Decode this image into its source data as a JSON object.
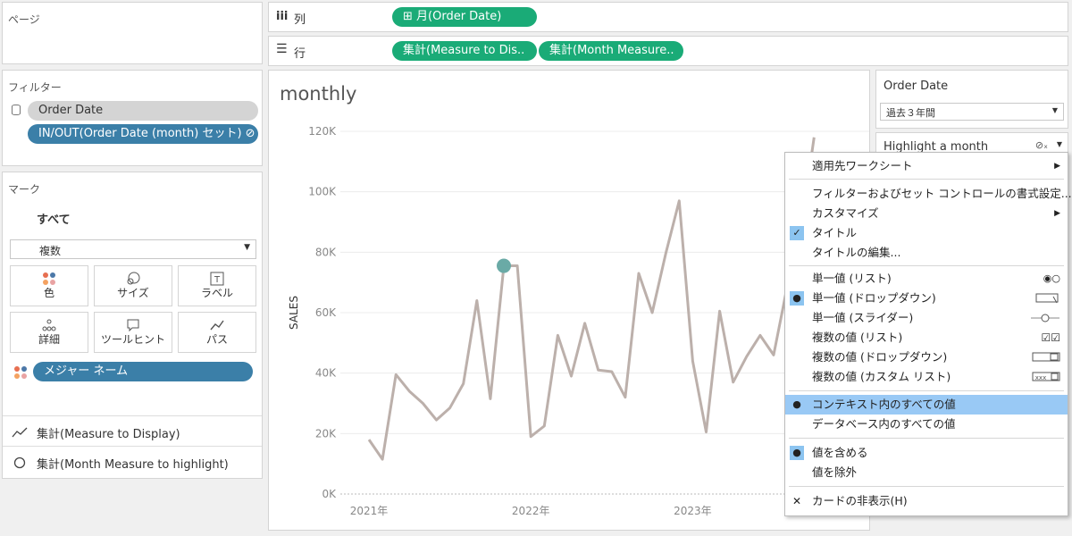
{
  "pages_shelf": {
    "title": "ページ"
  },
  "columns_shelf": {
    "label": "列",
    "pill": "⊞ 月(Order Date)"
  },
  "rows_shelf": {
    "label": "行",
    "pills": [
      "集計(Measure to Dis..",
      "集計(Month Measure.."
    ]
  },
  "filters": {
    "title": "フィルター",
    "items": [
      "Order Date",
      "IN/OUT(Order Date (month) セット) ⊘"
    ]
  },
  "marks": {
    "title": "マーク",
    "all_label": "すべて",
    "type_value": "複数",
    "buttons": [
      {
        "label": "色"
      },
      {
        "label": "サイズ"
      },
      {
        "label": "ラベル"
      },
      {
        "label": "詳細"
      },
      {
        "label": "ツールヒント"
      },
      {
        "label": "パス"
      }
    ],
    "field_pill": "メジャー ネーム",
    "measures": [
      "集計(Measure to Display)",
      "集計(Month Measure to highlight)"
    ]
  },
  "viz": {
    "title": "monthly"
  },
  "chart_data": {
    "type": "line",
    "title": "monthly",
    "ylabel": "SALES",
    "xlabel": "",
    "ylim": [
      0,
      120000
    ],
    "yticks": [
      0,
      20000,
      40000,
      60000,
      80000,
      100000,
      120000
    ],
    "ytick_labels": [
      "0K",
      "20K",
      "40K",
      "60K",
      "80K",
      "100K",
      "120K"
    ],
    "xtick_labels": [
      "2021年",
      "2022年",
      "2023年"
    ],
    "grid": true,
    "x": [
      "2021-01",
      "2021-02",
      "2021-03",
      "2021-04",
      "2021-05",
      "2021-06",
      "2021-07",
      "2021-08",
      "2021-09",
      "2021-10",
      "2021-11",
      "2021-12",
      "2022-01",
      "2022-02",
      "2022-03",
      "2022-04",
      "2022-05",
      "2022-06",
      "2022-07",
      "2022-08",
      "2022-09",
      "2022-10",
      "2022-11",
      "2022-12",
      "2023-01",
      "2023-02",
      "2023-03",
      "2023-04",
      "2023-05",
      "2023-06",
      "2023-07",
      "2023-08",
      "2023-09",
      "2023-10"
    ],
    "series": [
      {
        "values": [
          18000,
          11500,
          39500,
          34000,
          30000,
          24500,
          28500,
          36500,
          64000,
          31500,
          75500,
          75500,
          19000,
          22500,
          52500,
          39000,
          56500,
          41000,
          40500,
          32000,
          73000,
          60000,
          79500,
          97000,
          44000,
          20500,
          60500,
          37000,
          45500,
          52500,
          46000,
          68500,
          87000,
          118000
        ]
      }
    ],
    "highlight": {
      "x": "2021-11",
      "value": 75500,
      "color": "#6aaaa6"
    },
    "line_color": "#bcb0ab"
  },
  "order_date_card": {
    "title": "Order Date",
    "value": "過去３年間"
  },
  "highlight_card": {
    "title": "Highlight a month"
  },
  "context_menu": {
    "items": [
      {
        "label": "適用先ワークシート",
        "arrow": true
      },
      {
        "label": "フィルターおよびセット コントロールの書式設定..."
      },
      {
        "label": "カスタマイズ",
        "arrow": true
      },
      {
        "label": "タイトル",
        "checked": true
      },
      {
        "label": "タイトルの編集..."
      },
      {
        "label": "単一値 (リスト)"
      },
      {
        "label": "単一値 (ドロップダウン)",
        "selected": true
      },
      {
        "label": "単一値 (スライダー)"
      },
      {
        "label": "複数の値 (リスト)"
      },
      {
        "label": "複数の値 (ドロップダウン)"
      },
      {
        "label": "複数の値 (カスタム リスト)"
      },
      {
        "label": "コンテキスト内のすべての値",
        "selected": true,
        "highlighted": true
      },
      {
        "label": "データベース内のすべての値"
      },
      {
        "label": "値を含める",
        "selected": true
      },
      {
        "label": "値を除外"
      },
      {
        "label": "カードの非表示(H)"
      }
    ]
  }
}
